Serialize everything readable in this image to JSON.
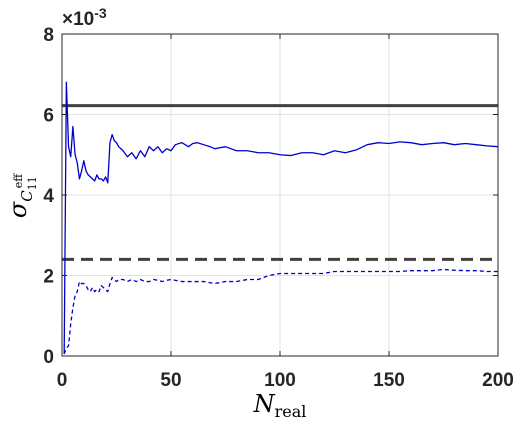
{
  "chart_data": {
    "type": "line",
    "title": "",
    "xlabel": "N",
    "xlabel_sub": "real",
    "ylabel": "σ",
    "ylabel_sub": "C",
    "ylabel_sub_sup": "eff",
    "ylabel_sub_sub": "11",
    "y_multiplier": "×10",
    "y_multiplier_exp": "-3",
    "xlim": [
      0,
      200
    ],
    "ylim": [
      0,
      8
    ],
    "xticks": [
      "0",
      "50",
      "100",
      "150",
      "200"
    ],
    "yticks": [
      "0",
      "2",
      "4",
      "6",
      "8"
    ],
    "grid": true,
    "reference_lines": [
      {
        "y": 6.22,
        "style": "solid",
        "color": "#404040"
      },
      {
        "y": 2.4,
        "style": "dashed",
        "color": "#404040"
      }
    ],
    "series": [
      {
        "style": "solid",
        "color": "#0000cc",
        "x": [
          1,
          2,
          3,
          4,
          5,
          6,
          7,
          8,
          9,
          10,
          11,
          12,
          13,
          14,
          15,
          16,
          17,
          18,
          19,
          20,
          21,
          22,
          23,
          24,
          25,
          26,
          28,
          30,
          32,
          34,
          36,
          38,
          40,
          42,
          44,
          46,
          48,
          50,
          52,
          55,
          58,
          60,
          62,
          65,
          68,
          70,
          75,
          80,
          85,
          90,
          95,
          100,
          105,
          110,
          115,
          120,
          125,
          130,
          135,
          140,
          145,
          150,
          155,
          160,
          165,
          170,
          175,
          180,
          185,
          190,
          195,
          200
        ],
        "y": [
          0.05,
          6.8,
          5.2,
          4.95,
          5.7,
          5.0,
          4.8,
          4.4,
          4.6,
          4.85,
          4.6,
          4.5,
          4.45,
          4.4,
          4.35,
          4.5,
          4.4,
          4.4,
          4.35,
          4.45,
          4.3,
          5.3,
          5.5,
          5.35,
          5.3,
          5.2,
          5.1,
          4.95,
          5.05,
          4.9,
          5.1,
          4.95,
          5.2,
          5.1,
          5.2,
          5.05,
          5.15,
          5.1,
          5.25,
          5.3,
          5.2,
          5.28,
          5.3,
          5.25,
          5.2,
          5.15,
          5.2,
          5.1,
          5.1,
          5.05,
          5.05,
          5.0,
          4.98,
          5.05,
          5.05,
          5.0,
          5.1,
          5.05,
          5.12,
          5.25,
          5.3,
          5.28,
          5.32,
          5.3,
          5.25,
          5.28,
          5.3,
          5.25,
          5.28,
          5.25,
          5.22,
          5.2
        ]
      },
      {
        "style": "dashed",
        "color": "#0000cc",
        "x": [
          1,
          2,
          3,
          4,
          5,
          6,
          7,
          8,
          9,
          10,
          11,
          12,
          13,
          14,
          15,
          16,
          17,
          18,
          19,
          20,
          21,
          22,
          23,
          24,
          25,
          26,
          28,
          30,
          32,
          34,
          36,
          38,
          40,
          42,
          44,
          46,
          48,
          50,
          55,
          60,
          65,
          70,
          75,
          80,
          85,
          90,
          95,
          100,
          105,
          110,
          115,
          120,
          125,
          130,
          135,
          140,
          145,
          150,
          155,
          160,
          165,
          170,
          175,
          180,
          185,
          190,
          195,
          200
        ],
        "y": [
          0.05,
          0.2,
          0.25,
          0.8,
          1.2,
          1.5,
          1.6,
          1.85,
          1.8,
          1.8,
          1.75,
          1.65,
          1.6,
          1.7,
          1.6,
          1.65,
          1.6,
          1.75,
          1.7,
          1.65,
          1.6,
          1.8,
          1.95,
          1.9,
          1.85,
          1.9,
          1.9,
          1.85,
          1.9,
          1.85,
          1.9,
          1.85,
          1.85,
          1.9,
          1.88,
          1.85,
          1.88,
          1.9,
          1.85,
          1.85,
          1.85,
          1.8,
          1.85,
          1.85,
          1.9,
          1.9,
          2.0,
          2.05,
          2.05,
          2.05,
          2.05,
          2.05,
          2.1,
          2.1,
          2.1,
          2.1,
          2.1,
          2.1,
          2.1,
          2.12,
          2.12,
          2.12,
          2.15,
          2.13,
          2.12,
          2.12,
          2.1,
          2.1
        ]
      }
    ]
  }
}
